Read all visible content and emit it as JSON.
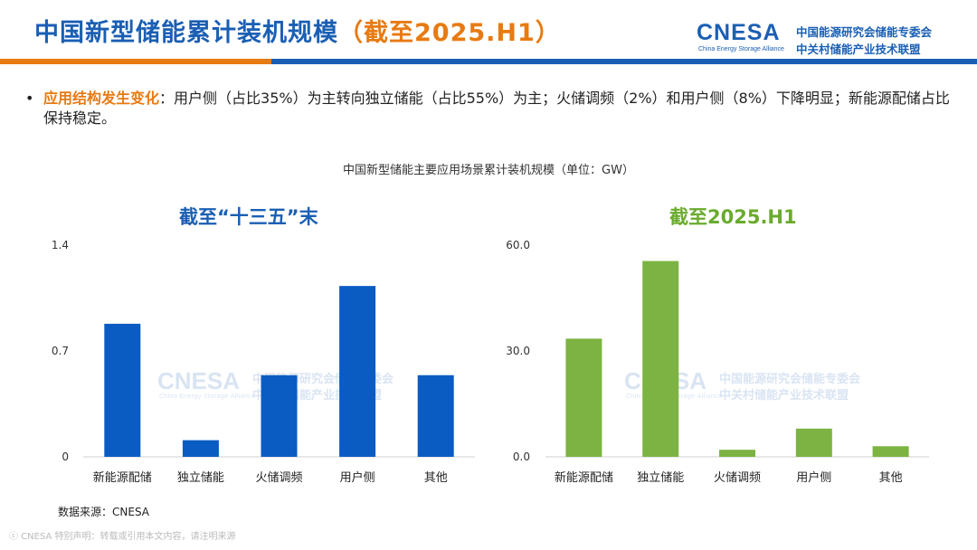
{
  "header": {
    "title_main": "中国新型储能累计装机规模",
    "title_highlight": "（截至2025.H1）",
    "logo_en": "CNESA",
    "logo_en_sub": "China Energy Storage Alliance",
    "logo_cn_line1": "中国能源研究会储能专委会",
    "logo_cn_line2": "中关村储能产业技术联盟"
  },
  "bullet": {
    "dot": "•",
    "key": "应用结构发生变化",
    "text": "：用户侧（占比35%）为主转向独立储能（占比55%）为主；火储调频（2%）和用户侧（8%）下降明显；新能源配储占比保持稳定。"
  },
  "watermark": {
    "en": "CNESA",
    "en_sub": "China Energy Storage Alliance",
    "cn_line1": "中国能源研究会储能专委会",
    "cn_line2": "中关村储能产业技术联盟"
  },
  "chart_title": "中国新型储能主要应用场景累计装机规模（单位：GW）",
  "chart_data": [
    {
      "type": "bar",
      "title": "截至“十三五”末",
      "categories": [
        "新能源配储",
        "独立储能",
        "火储调频",
        "用户侧",
        "其他"
      ],
      "values": [
        0.88,
        0.11,
        0.54,
        1.13,
        0.54
      ],
      "ylim": [
        0,
        1.4
      ],
      "yticks": [
        "0",
        "0.7",
        "1.4"
      ],
      "ytick_values": [
        0,
        0.7,
        1.4
      ],
      "color": "#0a5cc2",
      "title_color": "#1a5fb4",
      "grid": false
    },
    {
      "type": "bar",
      "title": "截至2025.H1",
      "categories": [
        "新能源配储",
        "独立储能",
        "火储调频",
        "用户侧",
        "其他"
      ],
      "values": [
        33.5,
        55.5,
        2.0,
        8.0,
        3.0
      ],
      "ylim": [
        0,
        60
      ],
      "yticks": [
        "0.0",
        "30.0",
        "60.0"
      ],
      "ytick_values": [
        0,
        30,
        60
      ],
      "color": "#7cb342",
      "title_color": "#6aab2e",
      "grid": false
    }
  ],
  "source": "数据来源：CNESA",
  "disclaimer": "ⓒ CNESA  特别声明：转载或引用本文内容，请注明来源"
}
